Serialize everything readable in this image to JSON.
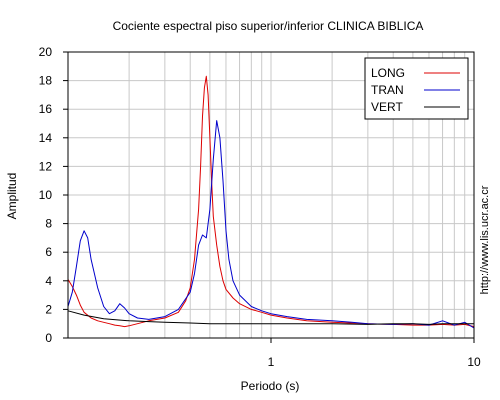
{
  "chart_data": {
    "type": "line",
    "title": "Cociente espectral piso superior/inferior  CLINICA BIBLICA",
    "xlabel": "Periodo (s)",
    "ylabel": "Amplitud",
    "x_scale": "log",
    "xlim": [
      0.1,
      10
    ],
    "ylim": [
      0,
      20
    ],
    "x_ticks": [
      1,
      10
    ],
    "x_tick_labels": [
      "1",
      "10"
    ],
    "y_ticks": [
      0,
      2,
      4,
      6,
      8,
      10,
      12,
      14,
      16,
      18,
      20
    ],
    "y_tick_labels": [
      "0",
      "2",
      "4",
      "6",
      "8",
      "10",
      "12",
      "14",
      "16",
      "18",
      "20"
    ],
    "grid": true,
    "legend_position": "top-right",
    "side_label": "http://www.lis.ucr.ac.cr",
    "series": [
      {
        "name": "LONG",
        "color": "#dd0000",
        "points": [
          [
            0.1,
            4.1
          ],
          [
            0.105,
            3.6
          ],
          [
            0.11,
            3.0
          ],
          [
            0.115,
            2.3
          ],
          [
            0.12,
            1.8
          ],
          [
            0.13,
            1.4
          ],
          [
            0.14,
            1.2
          ],
          [
            0.15,
            1.1
          ],
          [
            0.16,
            1.0
          ],
          [
            0.17,
            0.9
          ],
          [
            0.18,
            0.85
          ],
          [
            0.19,
            0.8
          ],
          [
            0.2,
            0.85
          ],
          [
            0.22,
            1.0
          ],
          [
            0.25,
            1.2
          ],
          [
            0.3,
            1.4
          ],
          [
            0.35,
            1.8
          ],
          [
            0.38,
            2.6
          ],
          [
            0.4,
            3.5
          ],
          [
            0.42,
            5.5
          ],
          [
            0.44,
            9.0
          ],
          [
            0.45,
            12.0
          ],
          [
            0.46,
            15.5
          ],
          [
            0.47,
            17.5
          ],
          [
            0.48,
            18.3
          ],
          [
            0.49,
            17.0
          ],
          [
            0.5,
            14.0
          ],
          [
            0.51,
            11.0
          ],
          [
            0.52,
            8.5
          ],
          [
            0.54,
            6.5
          ],
          [
            0.56,
            5.0
          ],
          [
            0.58,
            4.0
          ],
          [
            0.6,
            3.4
          ],
          [
            0.65,
            2.8
          ],
          [
            0.7,
            2.4
          ],
          [
            0.8,
            2.0
          ],
          [
            0.9,
            1.8
          ],
          [
            1.0,
            1.6
          ],
          [
            1.2,
            1.4
          ],
          [
            1.5,
            1.2
          ],
          [
            2.0,
            1.1
          ],
          [
            3.0,
            1.0
          ],
          [
            4.0,
            0.95
          ],
          [
            5.0,
            0.9
          ],
          [
            6.0,
            0.9
          ],
          [
            7.0,
            0.95
          ],
          [
            8.0,
            0.9
          ],
          [
            9.0,
            0.95
          ],
          [
            10.0,
            0.8
          ]
        ]
      },
      {
        "name": "TRAN",
        "color": "#0000cc",
        "points": [
          [
            0.1,
            2.2
          ],
          [
            0.105,
            3.2
          ],
          [
            0.11,
            5.0
          ],
          [
            0.115,
            6.8
          ],
          [
            0.12,
            7.5
          ],
          [
            0.125,
            7.0
          ],
          [
            0.13,
            5.5
          ],
          [
            0.14,
            3.5
          ],
          [
            0.15,
            2.2
          ],
          [
            0.16,
            1.7
          ],
          [
            0.17,
            1.9
          ],
          [
            0.18,
            2.4
          ],
          [
            0.19,
            2.1
          ],
          [
            0.2,
            1.7
          ],
          [
            0.22,
            1.4
          ],
          [
            0.25,
            1.3
          ],
          [
            0.3,
            1.5
          ],
          [
            0.35,
            2.0
          ],
          [
            0.4,
            3.2
          ],
          [
            0.42,
            4.5
          ],
          [
            0.44,
            6.5
          ],
          [
            0.46,
            7.2
          ],
          [
            0.48,
            7.0
          ],
          [
            0.5,
            9.0
          ],
          [
            0.52,
            12.5
          ],
          [
            0.54,
            15.2
          ],
          [
            0.56,
            14.0
          ],
          [
            0.58,
            11.0
          ],
          [
            0.6,
            7.5
          ],
          [
            0.62,
            5.5
          ],
          [
            0.65,
            4.0
          ],
          [
            0.7,
            3.0
          ],
          [
            0.8,
            2.2
          ],
          [
            0.9,
            1.9
          ],
          [
            1.0,
            1.7
          ],
          [
            1.2,
            1.5
          ],
          [
            1.5,
            1.3
          ],
          [
            2.0,
            1.2
          ],
          [
            2.5,
            1.1
          ],
          [
            3.0,
            1.0
          ],
          [
            4.0,
            0.95
          ],
          [
            5.0,
            1.0
          ],
          [
            6.0,
            0.9
          ],
          [
            7.0,
            1.2
          ],
          [
            8.0,
            0.9
          ],
          [
            9.0,
            1.1
          ],
          [
            10.0,
            0.7
          ]
        ]
      },
      {
        "name": "VERT",
        "color": "#000000",
        "points": [
          [
            0.1,
            1.9
          ],
          [
            0.12,
            1.6
          ],
          [
            0.15,
            1.35
          ],
          [
            0.2,
            1.2
          ],
          [
            0.25,
            1.15
          ],
          [
            0.3,
            1.1
          ],
          [
            0.4,
            1.05
          ],
          [
            0.5,
            1.0
          ],
          [
            0.7,
            1.0
          ],
          [
            1.0,
            1.0
          ],
          [
            1.5,
            1.0
          ],
          [
            2.0,
            1.0
          ],
          [
            3.0,
            0.95
          ],
          [
            4.0,
            1.0
          ],
          [
            5.0,
            1.0
          ],
          [
            6.0,
            0.95
          ],
          [
            7.0,
            1.0
          ],
          [
            8.0,
            1.0
          ],
          [
            9.0,
            1.0
          ],
          [
            10.0,
            1.0
          ]
        ]
      }
    ]
  }
}
